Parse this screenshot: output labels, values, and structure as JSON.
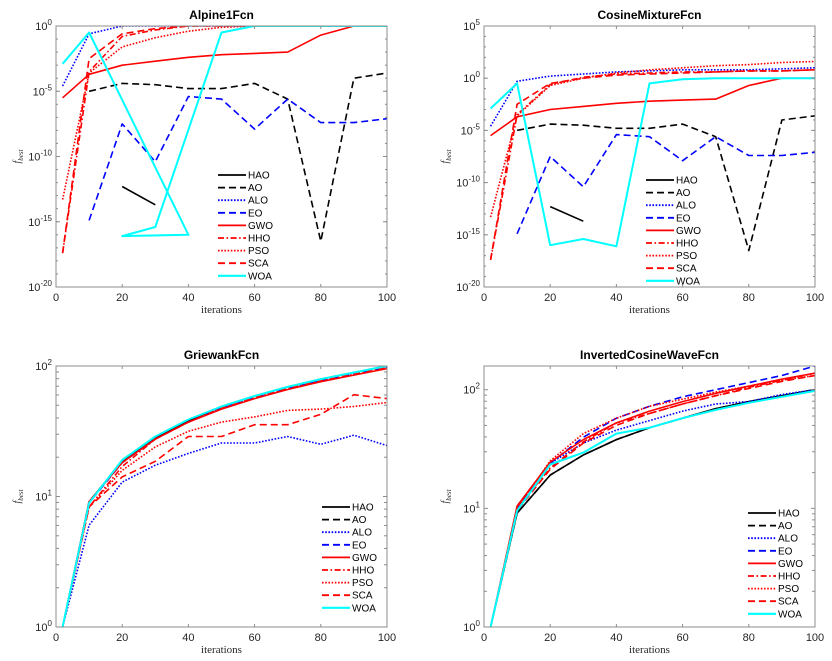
{
  "figure": {
    "background": "#ffffff"
  },
  "legend_entries": [
    {
      "name": "HAO",
      "color": "#000000",
      "style": "solid"
    },
    {
      "name": "AO",
      "color": "#000000",
      "style": "dashed"
    },
    {
      "name": "ALO",
      "color": "#0000ff",
      "style": "dotted"
    },
    {
      "name": "EO",
      "color": "#0000ff",
      "style": "dashed"
    },
    {
      "name": "GWO",
      "color": "#ff0000",
      "style": "solid"
    },
    {
      "name": "HHO",
      "color": "#ff0000",
      "style": "dashdot"
    },
    {
      "name": "PSO",
      "color": "#ff0000",
      "style": "dotted"
    },
    {
      "name": "SCA",
      "color": "#ff0000",
      "style": "dashed"
    },
    {
      "name": "WOA",
      "color": "#00ffff",
      "style": "solid"
    }
  ],
  "chart_data": [
    {
      "type": "line",
      "title": "Alpine1Fcn",
      "xlabel": "iterations",
      "ylabel": "f_best",
      "yscale": "log",
      "xlim": [
        0,
        100
      ],
      "ylim_log10": [
        -20,
        0
      ],
      "xticks": [
        0,
        20,
        40,
        60,
        80,
        100
      ],
      "yticks_log10": [
        -20,
        -15,
        -10,
        -5,
        0
      ],
      "legend": "lower-center",
      "series": [
        {
          "name": "HAO",
          "x": [
            20,
            30
          ],
          "log10_y": [
            -12.3,
            -13.7
          ]
        },
        {
          "name": "AO",
          "x": [
            10,
            20,
            30,
            40,
            50,
            60,
            70,
            80,
            90,
            100
          ],
          "log10_y": [
            -5.0,
            -4.4,
            -4.5,
            -4.8,
            -4.8,
            -4.4,
            -5.6,
            -16.5,
            -4.0,
            -3.6
          ]
        },
        {
          "name": "ALO",
          "x": [
            2,
            10,
            20,
            30,
            40,
            50,
            60,
            70,
            80,
            90,
            100
          ],
          "log10_y": [
            -4.6,
            -0.6,
            0,
            0,
            0,
            0,
            0,
            0,
            0,
            0,
            0
          ]
        },
        {
          "name": "EO",
          "x": [
            10,
            20,
            30,
            40,
            50,
            60,
            70,
            80,
            90,
            100
          ],
          "log10_y": [
            -14.9,
            -7.5,
            -10.4,
            -5.4,
            -5.6,
            -7.9,
            -5.6,
            -7.4,
            -7.4,
            -7.1
          ]
        },
        {
          "name": "GWO",
          "x": [
            2,
            10,
            20,
            30,
            40,
            50,
            60,
            70,
            80,
            90,
            100
          ],
          "log10_y": [
            -5.5,
            -3.7,
            -3.0,
            -2.7,
            -2.4,
            -2.2,
            -2.1,
            -2.0,
            -0.7,
            0,
            0
          ]
        },
        {
          "name": "HHO",
          "x": [
            2,
            10,
            20,
            30,
            40,
            50,
            60,
            70,
            80,
            90,
            100
          ],
          "log10_y": [
            -17.4,
            -3.5,
            -0.8,
            -0.3,
            0,
            0,
            0,
            0,
            0,
            0,
            0
          ]
        },
        {
          "name": "PSO",
          "x": [
            2,
            10,
            20,
            30,
            40,
            50,
            60,
            70,
            80,
            90,
            100
          ],
          "log10_y": [
            -13.3,
            -3.6,
            -1.6,
            -0.9,
            -0.4,
            -0.1,
            0,
            0,
            0,
            0,
            0
          ]
        },
        {
          "name": "SCA",
          "x": [
            2,
            10,
            20,
            30,
            40,
            50,
            60,
            70,
            80,
            90,
            100
          ],
          "log10_y": [
            -17.4,
            -2.5,
            -0.6,
            -0.2,
            0,
            0,
            0,
            0,
            0,
            0,
            0
          ]
        },
        {
          "name": "WOA",
          "x": [
            2,
            10,
            40,
            20,
            30,
            50,
            60,
            70,
            80,
            90,
            100
          ],
          "log10_y": [
            -2.9,
            -0.5,
            -16.0,
            -16.1,
            -15.4,
            -0.5,
            0,
            0,
            0,
            0,
            0
          ]
        }
      ]
    },
    {
      "type": "line",
      "title": "CosineMixtureFcn",
      "xlabel": "iterations",
      "ylabel": "f_best",
      "yscale": "log",
      "xlim": [
        0,
        100
      ],
      "ylim_log10": [
        -20,
        5
      ],
      "xticks": [
        0,
        20,
        40,
        60,
        80,
        100
      ],
      "yticks_log10": [
        -20,
        -15,
        -10,
        -5,
        0,
        5
      ],
      "legend": "lower-center",
      "series": [
        {
          "name": "HAO",
          "x": [
            20,
            30
          ],
          "log10_y": [
            -12.3,
            -13.7
          ]
        },
        {
          "name": "AO",
          "x": [
            10,
            20,
            30,
            40,
            50,
            60,
            70,
            80,
            90,
            100
          ],
          "log10_y": [
            -5.0,
            -4.4,
            -4.5,
            -4.8,
            -4.8,
            -4.4,
            -5.6,
            -16.5,
            -4.0,
            -3.6
          ]
        },
        {
          "name": "ALO",
          "x": [
            2,
            10,
            20,
            30,
            40,
            50,
            60,
            70,
            80,
            90,
            100
          ],
          "log10_y": [
            -4.6,
            -0.3,
            0.2,
            0.4,
            0.6,
            0.7,
            0.8,
            0.8,
            0.8,
            0.9,
            1.0
          ]
        },
        {
          "name": "EO",
          "x": [
            10,
            20,
            30,
            40,
            50,
            60,
            70,
            80,
            90,
            100
          ],
          "log10_y": [
            -14.9,
            -7.5,
            -10.4,
            -5.4,
            -5.6,
            -7.9,
            -5.6,
            -7.4,
            -7.4,
            -7.1
          ]
        },
        {
          "name": "GWO",
          "x": [
            2,
            10,
            20,
            30,
            40,
            50,
            60,
            70,
            80,
            90,
            100
          ],
          "log10_y": [
            -5.5,
            -3.7,
            -3.0,
            -2.7,
            -2.4,
            -2.2,
            -2.1,
            -2.0,
            -0.7,
            0,
            0
          ]
        },
        {
          "name": "HHO",
          "x": [
            2,
            10,
            20,
            30,
            40,
            50,
            60,
            70,
            80,
            90,
            100
          ],
          "log10_y": [
            -17.4,
            -3.5,
            -0.6,
            0.1,
            0.4,
            0.5,
            0.6,
            0.6,
            0.7,
            0.7,
            0.8
          ]
        },
        {
          "name": "PSO",
          "x": [
            2,
            10,
            20,
            30,
            40,
            50,
            60,
            70,
            80,
            90,
            100
          ],
          "log10_y": [
            -13.3,
            -3.6,
            -0.7,
            0.0,
            0.5,
            0.8,
            1.0,
            1.2,
            1.3,
            1.5,
            1.6
          ]
        },
        {
          "name": "SCA",
          "x": [
            2,
            10,
            20,
            30,
            40,
            50,
            60,
            70,
            80,
            90,
            100
          ],
          "log10_y": [
            -17.4,
            -2.5,
            -0.5,
            0.0,
            0.3,
            0.4,
            0.5,
            0.6,
            0.7,
            0.7,
            0.8
          ]
        },
        {
          "name": "WOA",
          "x": [
            2,
            10,
            20,
            30,
            40,
            50,
            60,
            70,
            80,
            90,
            100
          ],
          "log10_y": [
            -2.9,
            -0.5,
            -16.0,
            -15.4,
            -16.1,
            -0.5,
            -0.1,
            0,
            0,
            0,
            0
          ]
        }
      ]
    },
    {
      "type": "line",
      "title": "GriewankFcn",
      "xlabel": "iterations",
      "ylabel": "f_best",
      "yscale": "log",
      "xlim": [
        0,
        100
      ],
      "ylim_log10": [
        0,
        2
      ],
      "xticks": [
        0,
        20,
        40,
        60,
        80,
        100
      ],
      "yticks_log10": [
        0,
        1,
        2
      ],
      "legend": "lower-right",
      "series": [
        {
          "name": "HAO",
          "x": [
            2,
            10,
            20,
            30,
            40,
            50,
            60,
            70,
            80,
            90,
            100
          ],
          "log10_y": [
            0,
            0.96,
            1.27,
            1.45,
            1.58,
            1.69,
            1.77,
            1.84,
            1.9,
            1.95,
            2.0
          ]
        },
        {
          "name": "AO",
          "x": [
            2,
            10,
            20,
            30,
            40,
            50,
            60,
            70,
            80,
            90,
            100
          ],
          "log10_y": [
            0,
            0.96,
            1.27,
            1.45,
            1.58,
            1.69,
            1.77,
            1.84,
            1.9,
            1.95,
            2.0
          ]
        },
        {
          "name": "ALO",
          "x": [
            2,
            10,
            20,
            30,
            40,
            50,
            60,
            70,
            80,
            90,
            100
          ],
          "log10_y": [
            0,
            0.78,
            1.11,
            1.24,
            1.33,
            1.41,
            1.41,
            1.46,
            1.4,
            1.47,
            1.39
          ]
        },
        {
          "name": "EO",
          "x": [
            2,
            10,
            20,
            30,
            40,
            50,
            60,
            70,
            80,
            90,
            100
          ],
          "log10_y": [
            0,
            0.95,
            1.26,
            1.44,
            1.57,
            1.68,
            1.76,
            1.83,
            1.89,
            1.94,
            1.99
          ]
        },
        {
          "name": "GWO",
          "x": [
            2,
            10,
            20,
            30,
            40,
            50,
            60,
            70,
            80,
            90,
            100
          ],
          "log10_y": [
            0,
            0.96,
            1.26,
            1.44,
            1.57,
            1.67,
            1.75,
            1.82,
            1.88,
            1.93,
            1.98
          ]
        },
        {
          "name": "HHO",
          "x": [
            2,
            10,
            20,
            30,
            40,
            50,
            60,
            70,
            80,
            90,
            100
          ],
          "log10_y": [
            0,
            0.92,
            1.23,
            1.44,
            1.57,
            1.68,
            1.76,
            1.83,
            1.89,
            1.94,
            1.99
          ]
        },
        {
          "name": "PSO",
          "x": [
            2,
            10,
            20,
            30,
            40,
            50,
            60,
            70,
            80,
            90,
            100
          ],
          "log10_y": [
            0,
            0.92,
            1.2,
            1.38,
            1.5,
            1.57,
            1.61,
            1.66,
            1.67,
            1.69,
            1.72
          ]
        },
        {
          "name": "SCA",
          "x": [
            2,
            10,
            20,
            30,
            40,
            50,
            60,
            70,
            80,
            90,
            100
          ],
          "log10_y": [
            0,
            0.92,
            1.15,
            1.27,
            1.46,
            1.46,
            1.55,
            1.55,
            1.63,
            1.78,
            1.75
          ]
        },
        {
          "name": "WOA",
          "x": [
            2,
            10,
            20,
            30,
            40,
            50,
            60,
            70,
            80,
            90,
            100
          ],
          "log10_y": [
            0,
            0.95,
            1.28,
            1.46,
            1.59,
            1.69,
            1.77,
            1.84,
            1.9,
            1.95,
            2.0
          ]
        }
      ]
    },
    {
      "type": "line",
      "title": "InvertedCosineWaveFcn",
      "xlabel": "iterations",
      "ylabel": "f_best",
      "yscale": "log",
      "xlim": [
        0,
        100
      ],
      "ylim_log10": [
        0,
        2.2
      ],
      "xticks": [
        0,
        20,
        40,
        60,
        80,
        100
      ],
      "yticks_log10": [
        0,
        1,
        2
      ],
      "legend": "lower-right",
      "series": [
        {
          "name": "HAO",
          "x": [
            2,
            10,
            20,
            30,
            40,
            50,
            60,
            70,
            80,
            90,
            100
          ],
          "log10_y": [
            0,
            0.96,
            1.28,
            1.45,
            1.58,
            1.68,
            1.76,
            1.84,
            1.9,
            1.95,
            2.0
          ]
        },
        {
          "name": "AO",
          "x": [
            2,
            10,
            20,
            30,
            40,
            50,
            60,
            70,
            80,
            90,
            100
          ],
          "log10_y": [
            0,
            0.96,
            1.28,
            1.45,
            1.58,
            1.68,
            1.76,
            1.84,
            1.9,
            1.95,
            2.0
          ]
        },
        {
          "name": "ALO",
          "x": [
            2,
            10,
            20,
            30,
            40,
            50,
            60,
            70,
            80,
            90,
            100
          ],
          "log10_y": [
            0,
            1.0,
            1.38,
            1.55,
            1.66,
            1.74,
            1.82,
            1.88,
            1.9,
            1.96,
            2.0
          ]
        },
        {
          "name": "EO",
          "x": [
            2,
            10,
            20,
            30,
            40,
            50,
            60,
            70,
            80,
            90,
            100
          ],
          "log10_y": [
            0,
            1.0,
            1.38,
            1.6,
            1.76,
            1.86,
            1.94,
            2.0,
            2.06,
            2.12,
            2.2
          ]
        },
        {
          "name": "GWO",
          "x": [
            2,
            10,
            20,
            30,
            40,
            50,
            60,
            70,
            80,
            90,
            100
          ],
          "log10_y": [
            0,
            1.02,
            1.39,
            1.58,
            1.72,
            1.82,
            1.9,
            1.97,
            2.03,
            2.09,
            2.14
          ]
        },
        {
          "name": "HHO",
          "x": [
            2,
            10,
            20,
            30,
            40,
            50,
            60,
            70,
            80,
            90,
            100
          ],
          "log10_y": [
            0,
            1.0,
            1.34,
            1.56,
            1.72,
            1.8,
            1.88,
            1.95,
            2.02,
            2.08,
            2.14
          ]
        },
        {
          "name": "PSO",
          "x": [
            2,
            10,
            20,
            30,
            40,
            50,
            60,
            70,
            80,
            90,
            100
          ],
          "log10_y": [
            0,
            1.0,
            1.4,
            1.63,
            1.76,
            1.86,
            1.92,
            1.98,
            2.03,
            2.08,
            2.12
          ]
        },
        {
          "name": "SCA",
          "x": [
            2,
            10,
            20,
            30,
            40,
            50,
            60,
            70,
            80,
            90,
            100
          ],
          "log10_y": [
            0,
            0.98,
            1.33,
            1.55,
            1.7,
            1.8,
            1.88,
            1.95,
            2.01,
            2.07,
            2.12
          ]
        },
        {
          "name": "WOA",
          "x": [
            2,
            10,
            20,
            30,
            40,
            50,
            60,
            70,
            80,
            90,
            100
          ],
          "log10_y": [
            0,
            0.98,
            1.37,
            1.47,
            1.63,
            1.68,
            1.76,
            1.83,
            1.89,
            1.94,
            1.99
          ]
        }
      ]
    }
  ]
}
